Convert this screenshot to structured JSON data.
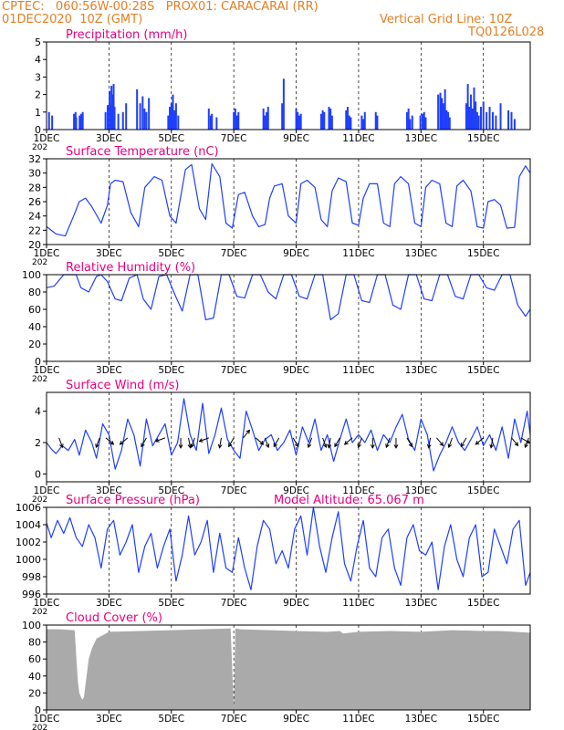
{
  "header": {
    "line1": "CPTEC:   060:56W-00:28S   PROX01: CARACARAI (RR)",
    "line2_left": "01DEC2020  10Z (GMT)",
    "line2_right": "Vertical Grid Line: 10Z",
    "line3_right": "TQ0126L028"
  },
  "colors": {
    "title": "#e6007e",
    "series": "#1f3fff",
    "orange": "#e67e22",
    "cloud": "#aaaaaa",
    "arrow": "#000000"
  },
  "x_ticks": [
    "1DEC",
    "3DEC",
    "5DEC",
    "7DEC",
    "9DEC",
    "11DEC",
    "13DEC",
    "15DEC"
  ],
  "x_tick_days": [
    0,
    2,
    4,
    6,
    8,
    10,
    12,
    14
  ],
  "x_sub": "202",
  "chart_data": [
    {
      "type": "bar",
      "title": "Precipitation (mm/h)",
      "ylim": [
        0,
        5
      ],
      "yticks": [
        0,
        1,
        2,
        3,
        4,
        5
      ],
      "ytick_labels": [
        "0",
        "1",
        "2",
        "3",
        "4",
        "5"
      ],
      "bar_width_days": 0.05,
      "t": [
        0.08,
        0.18,
        0.88,
        0.93,
        0.95,
        1.06,
        1.11,
        1.16,
        1.89,
        1.96,
        2.02,
        2.05,
        2.08,
        2.12,
        2.15,
        2.18,
        2.3,
        2.45,
        2.55,
        2.9,
        3.0,
        3.08,
        3.14,
        3.2,
        3.28,
        3.9,
        3.95,
        4.0,
        4.05,
        4.1,
        4.15,
        4.22,
        5.2,
        5.26,
        5.3,
        5.45,
        6.0,
        6.05,
        6.1,
        6.15,
        6.95,
        7.0,
        7.05,
        7.1,
        7.55,
        7.6,
        8.0,
        8.05,
        8.1,
        8.15,
        8.8,
        8.85,
        8.9,
        9.05,
        9.1,
        9.15,
        9.6,
        9.65,
        9.7,
        9.75,
        10.1,
        10.15,
        10.2,
        10.55,
        10.6,
        11.55,
        11.6,
        11.65,
        11.72,
        11.98,
        12.05,
        12.1,
        12.15,
        12.55,
        12.62,
        12.67,
        12.72,
        12.77,
        12.82,
        12.87,
        12.92,
        13.45,
        13.5,
        13.55,
        13.6,
        13.65,
        13.7,
        13.75,
        13.8,
        13.85,
        13.92,
        14.0,
        14.1,
        14.2,
        14.3,
        14.4,
        14.55,
        14.8,
        14.9,
        15.0
      ],
      "values": [
        1.0,
        0.8,
        0.9,
        1.0,
        0.7,
        0.8,
        0.9,
        1.0,
        1.0,
        1.4,
        2.2,
        1.4,
        2.5,
        2.0,
        2.6,
        1.3,
        0.9,
        1.0,
        1.5,
        2.3,
        1.5,
        1.9,
        1.2,
        1.0,
        1.8,
        0.8,
        1.3,
        1.5,
        2.0,
        1.1,
        1.5,
        0.8,
        1.2,
        0.8,
        0.9,
        0.7,
        1.0,
        1.2,
        0.8,
        1.0,
        1.2,
        0.8,
        1.0,
        1.3,
        1.5,
        2.9,
        1.2,
        1.0,
        0.8,
        0.9,
        0.9,
        1.1,
        1.0,
        1.3,
        1.2,
        0.8,
        1.1,
        1.3,
        0.8,
        0.7,
        0.8,
        0.6,
        1.0,
        1.0,
        0.8,
        1.0,
        1.2,
        0.6,
        0.8,
        0.8,
        0.9,
        1.0,
        0.7,
        2.0,
        2.1,
        1.8,
        1.5,
        2.3,
        1.1,
        1.0,
        0.7,
        1.5,
        2.6,
        1.3,
        2.0,
        1.2,
        2.4,
        1.6,
        1.0,
        0.8,
        1.3,
        1.6,
        1.0,
        1.3,
        1.0,
        0.8,
        1.5,
        1.1,
        1.0,
        0.6
      ]
    },
    {
      "type": "line",
      "title": "Surface Temperature (nC)",
      "ylim": [
        20,
        32
      ],
      "yticks": [
        20,
        22,
        24,
        26,
        28,
        30,
        32
      ],
      "ytick_labels": [
        "20",
        "22",
        "24",
        "26",
        "28",
        "30",
        "32"
      ],
      "x": [
        0,
        0.3,
        0.6,
        0.85,
        1.05,
        1.25,
        1.45,
        1.75,
        1.95,
        2.05,
        2.2,
        2.45,
        2.7,
        2.95,
        3.15,
        3.45,
        3.7,
        3.95,
        4.15,
        4.45,
        4.65,
        4.9,
        5.1,
        5.3,
        5.55,
        5.75,
        5.95,
        6.15,
        6.35,
        6.6,
        6.8,
        7.0,
        7.15,
        7.3,
        7.55,
        7.75,
        8.0,
        8.15,
        8.35,
        8.6,
        8.8,
        9.0,
        9.15,
        9.35,
        9.6,
        9.8,
        10.0,
        10.15,
        10.35,
        10.6,
        10.8,
        11.0,
        11.15,
        11.35,
        11.6,
        11.8,
        12.0,
        12.15,
        12.35,
        12.6,
        12.8,
        13.0,
        13.15,
        13.35,
        13.6,
        13.8,
        14.0,
        14.15,
        14.35,
        14.55,
        14.75,
        15.0,
        15.15,
        15.35,
        15.5
      ],
      "values": [
        22.5,
        21.5,
        21.2,
        23.8,
        26.0,
        26.5,
        25.3,
        23.0,
        25.5,
        28.5,
        29.0,
        28.8,
        24.5,
        22.5,
        28.0,
        29.5,
        29.0,
        24.0,
        23.0,
        30.5,
        31.2,
        25.0,
        23.5,
        31.3,
        29.5,
        23.0,
        22.3,
        27.0,
        27.3,
        24.0,
        22.5,
        22.8,
        26.5,
        28.2,
        28.5,
        24.0,
        23.0,
        28.5,
        29.0,
        28.0,
        23.5,
        22.5,
        27.5,
        29.3,
        28.8,
        23.0,
        22.7,
        26.5,
        28.5,
        28.5,
        23.0,
        22.5,
        28.5,
        29.5,
        28.5,
        23.0,
        22.5,
        28.0,
        29.0,
        28.5,
        23.0,
        22.5,
        28.2,
        29.0,
        27.5,
        22.5,
        22.3,
        26.0,
        26.3,
        25.5,
        22.3,
        22.4,
        29.5,
        31.0,
        30.0
      ]
    },
    {
      "type": "line",
      "title": "Relative Humidity (%)",
      "ylim": [
        0,
        100
      ],
      "yticks": [
        0,
        20,
        40,
        60,
        80,
        100
      ],
      "ytick_labels": [
        "0",
        "20",
        "40",
        "60",
        "80",
        "100"
      ],
      "x": [
        0,
        0.25,
        0.55,
        0.75,
        0.95,
        1.1,
        1.35,
        1.6,
        1.75,
        1.95,
        2.2,
        2.4,
        2.65,
        2.9,
        3.1,
        3.35,
        3.6,
        3.85,
        4.1,
        4.35,
        4.6,
        4.85,
        5.1,
        5.35,
        5.6,
        5.85,
        6.1,
        6.35,
        6.6,
        6.85,
        7.1,
        7.35,
        7.6,
        7.85,
        8.1,
        8.35,
        8.6,
        8.85,
        9.1,
        9.35,
        9.6,
        9.85,
        10.1,
        10.35,
        10.6,
        10.85,
        11.1,
        11.35,
        11.6,
        11.85,
        12.1,
        12.35,
        12.6,
        12.85,
        13.1,
        13.35,
        13.6,
        13.85,
        14.1,
        14.35,
        14.6,
        14.85,
        15.1,
        15.35,
        15.5
      ],
      "values": [
        85,
        87,
        100,
        100,
        100,
        85,
        80,
        98,
        100,
        92,
        72,
        70,
        96,
        100,
        72,
        60,
        98,
        100,
        78,
        58,
        100,
        100,
        48,
        50,
        100,
        100,
        75,
        73,
        100,
        100,
        80,
        72,
        100,
        100,
        75,
        72,
        100,
        100,
        48,
        55,
        100,
        100,
        70,
        68,
        100,
        100,
        65,
        60,
        100,
        100,
        72,
        70,
        100,
        100,
        75,
        72,
        100,
        100,
        85,
        82,
        100,
        100,
        65,
        52,
        60
      ]
    },
    {
      "type": "line",
      "title": "Surface Wind (m/s)",
      "ylim": [
        -0.5,
        5.2
      ],
      "yticks": [
        0,
        2,
        4
      ],
      "ytick_labels": [
        "0",
        "2",
        "4"
      ],
      "x": [
        0,
        0.15,
        0.3,
        0.5,
        0.7,
        0.9,
        1.05,
        1.25,
        1.45,
        1.6,
        1.8,
        2.0,
        2.2,
        2.4,
        2.6,
        2.8,
        3.0,
        3.2,
        3.4,
        3.6,
        3.8,
        4.0,
        4.2,
        4.4,
        4.6,
        4.8,
        5.0,
        5.2,
        5.4,
        5.6,
        5.8,
        6.0,
        6.2,
        6.4,
        6.6,
        6.8,
        7.0,
        7.2,
        7.4,
        7.6,
        7.8,
        8.0,
        8.2,
        8.4,
        8.6,
        8.8,
        9.0,
        9.2,
        9.4,
        9.6,
        9.8,
        10.0,
        10.2,
        10.4,
        10.6,
        10.8,
        11.0,
        11.2,
        11.4,
        11.6,
        11.8,
        12.0,
        12.2,
        12.4,
        12.6,
        12.8,
        13.0,
        13.2,
        13.4,
        13.6,
        13.8,
        14.0,
        14.2,
        14.4,
        14.6,
        14.8,
        15.0,
        15.2,
        15.4,
        15.5
      ],
      "values": [
        2.0,
        1.6,
        1.3,
        1.8,
        1.5,
        2.2,
        1.2,
        2.8,
        2.0,
        1.0,
        3.2,
        2.5,
        0.3,
        1.5,
        3.5,
        2.5,
        0.5,
        3.5,
        1.8,
        2.5,
        3.2,
        1.2,
        2.0,
        4.8,
        2.5,
        1.5,
        4.5,
        1.3,
        2.5,
        4.2,
        2.2,
        1.5,
        1.0,
        4.0,
        2.8,
        1.5,
        2.2,
        2.5,
        1.5,
        2.0,
        2.8,
        1.2,
        3.0,
        2.0,
        3.5,
        1.5,
        2.5,
        0.8,
        2.2,
        3.5,
        2.0,
        2.5,
        2.0,
        2.8,
        1.5,
        2.5,
        2.0,
        3.0,
        3.8,
        2.2,
        1.5,
        3.5,
        2.5,
        0.2,
        1.2,
        2.0,
        3.0,
        2.0,
        1.5,
        2.2,
        3.0,
        1.8,
        2.5,
        1.5,
        3.0,
        1.0,
        3.5,
        2.0,
        4.0,
        2.5
      ],
      "arrows": [
        {
          "t": 0.4,
          "dir": 160
        },
        {
          "t": 1.7,
          "dir": 200
        },
        {
          "t": 1.9,
          "dir": 130
        },
        {
          "t": 2.6,
          "dir": 230
        },
        {
          "t": 3.2,
          "dir": 210
        },
        {
          "t": 3.8,
          "dir": 250
        },
        {
          "t": 4.3,
          "dir": 180
        },
        {
          "t": 4.55,
          "dir": 170
        },
        {
          "t": 4.75,
          "dir": 200
        },
        {
          "t": 5.2,
          "dir": 250
        },
        {
          "t": 5.6,
          "dir": 190
        },
        {
          "t": 6.0,
          "dir": 210
        },
        {
          "t": 6.3,
          "dir": 40
        },
        {
          "t": 6.7,
          "dir": 130
        },
        {
          "t": 7.0,
          "dir": 160
        },
        {
          "t": 7.45,
          "dir": 210
        },
        {
          "t": 7.9,
          "dir": 150
        },
        {
          "t": 8.5,
          "dir": 200
        },
        {
          "t": 8.85,
          "dir": 160
        },
        {
          "t": 9.1,
          "dir": 190
        },
        {
          "t": 9.4,
          "dir": 210
        },
        {
          "t": 9.8,
          "dir": 230
        },
        {
          "t": 10.1,
          "dir": 200
        },
        {
          "t": 10.45,
          "dir": 180
        },
        {
          "t": 11.0,
          "dir": 200
        },
        {
          "t": 11.2,
          "dir": 180
        },
        {
          "t": 11.55,
          "dir": 150
        },
        {
          "t": 12.3,
          "dir": 190
        },
        {
          "t": 12.5,
          "dir": 140
        },
        {
          "t": 13.0,
          "dir": 200
        },
        {
          "t": 13.45,
          "dir": 210
        },
        {
          "t": 14.0,
          "dir": 230
        },
        {
          "t": 14.3,
          "dir": 190
        },
        {
          "t": 14.9,
          "dir": 140
        },
        {
          "t": 15.2,
          "dir": 120
        },
        {
          "t": 15.45,
          "dir": 200
        }
      ]
    },
    {
      "type": "line",
      "title": "Surface Pressure (hPa)",
      "annotation": "Model Altitude: 65.067 m",
      "ylim": [
        996,
        1006
      ],
      "yticks": [
        996,
        998,
        1000,
        1002,
        1004,
        1006
      ],
      "ytick_labels": [
        "996",
        "998",
        "1000",
        "1002",
        "1004",
        "1006"
      ],
      "x": [
        0,
        0.15,
        0.35,
        0.55,
        0.75,
        0.95,
        1.15,
        1.35,
        1.55,
        1.75,
        1.95,
        2.15,
        2.35,
        2.55,
        2.75,
        2.95,
        3.15,
        3.35,
        3.55,
        3.75,
        3.95,
        4.15,
        4.35,
        4.55,
        4.75,
        4.95,
        5.15,
        5.35,
        5.55,
        5.75,
        5.95,
        6.15,
        6.35,
        6.55,
        6.75,
        6.95,
        7.15,
        7.35,
        7.55,
        7.75,
        7.95,
        8.15,
        8.35,
        8.55,
        8.75,
        8.95,
        9.15,
        9.35,
        9.55,
        9.75,
        9.95,
        10.15,
        10.35,
        10.55,
        10.75,
        10.95,
        11.15,
        11.35,
        11.55,
        11.75,
        11.95,
        12.15,
        12.35,
        12.55,
        12.75,
        12.95,
        13.15,
        13.35,
        13.55,
        13.75,
        13.95,
        14.15,
        14.35,
        14.55,
        14.75,
        14.95,
        15.15,
        15.35,
        15.5
      ],
      "values": [
        1004.2,
        1002.5,
        1004.5,
        1003.0,
        1004.8,
        1002.5,
        1001.5,
        1004.0,
        1002.5,
        999.0,
        1003.5,
        1004.5,
        1000.5,
        1002.0,
        1004.0,
        998.5,
        1001.5,
        1003.0,
        999.0,
        1001.5,
        1003.5,
        997.5,
        1000.5,
        1005.0,
        1000.5,
        1002.0,
        1004.5,
        998.5,
        1003.0,
        999.0,
        998.5,
        1002.5,
        999.0,
        996.5,
        1001.5,
        1004.5,
        1003.5,
        999.5,
        1001.0,
        999.0,
        1003.5,
        1005.0,
        1000.5,
        1006.0,
        1001.5,
        998.5,
        1002.5,
        1005.5,
        999.5,
        997.5,
        1001.5,
        1004.5,
        999.0,
        998.0,
        1002.5,
        1003.5,
        999.0,
        997.0,
        1002.5,
        1004.0,
        1001.0,
        1000.5,
        1002.0,
        996.5,
        1001.5,
        1004.0,
        1000.0,
        998.0,
        1002.5,
        1004.0,
        998.0,
        998.5,
        1003.5,
        1001.5,
        999.5,
        1003.5,
        1004.5,
        997.0,
        998.5
      ]
    },
    {
      "type": "area",
      "title": "Cloud Cover (%)",
      "ylim": [
        0,
        100
      ],
      "yticks": [
        0,
        20,
        40,
        60,
        80,
        100
      ],
      "ytick_labels": [
        "0",
        "20",
        "40",
        "60",
        "80",
        "100"
      ],
      "x": [
        0,
        0.4,
        0.9,
        1.0,
        1.05,
        1.1,
        1.15,
        1.2,
        1.25,
        1.3,
        1.35,
        1.45,
        1.6,
        1.8,
        2.0,
        3.0,
        4.0,
        5.0,
        5.9,
        6.0,
        6.05,
        6.2,
        8.0,
        9.0,
        9.4,
        9.5,
        10.0,
        11.0,
        12.0,
        13.0,
        14.0,
        14.5,
        15.0,
        15.5
      ],
      "values": [
        95,
        95,
        94,
        35,
        20,
        15,
        12,
        15,
        30,
        45,
        60,
        72,
        84,
        88,
        92,
        93,
        94,
        95,
        96,
        2,
        96,
        95,
        93,
        92,
        93,
        90,
        92,
        93,
        92,
        94,
        93,
        93,
        92,
        91
      ]
    }
  ]
}
